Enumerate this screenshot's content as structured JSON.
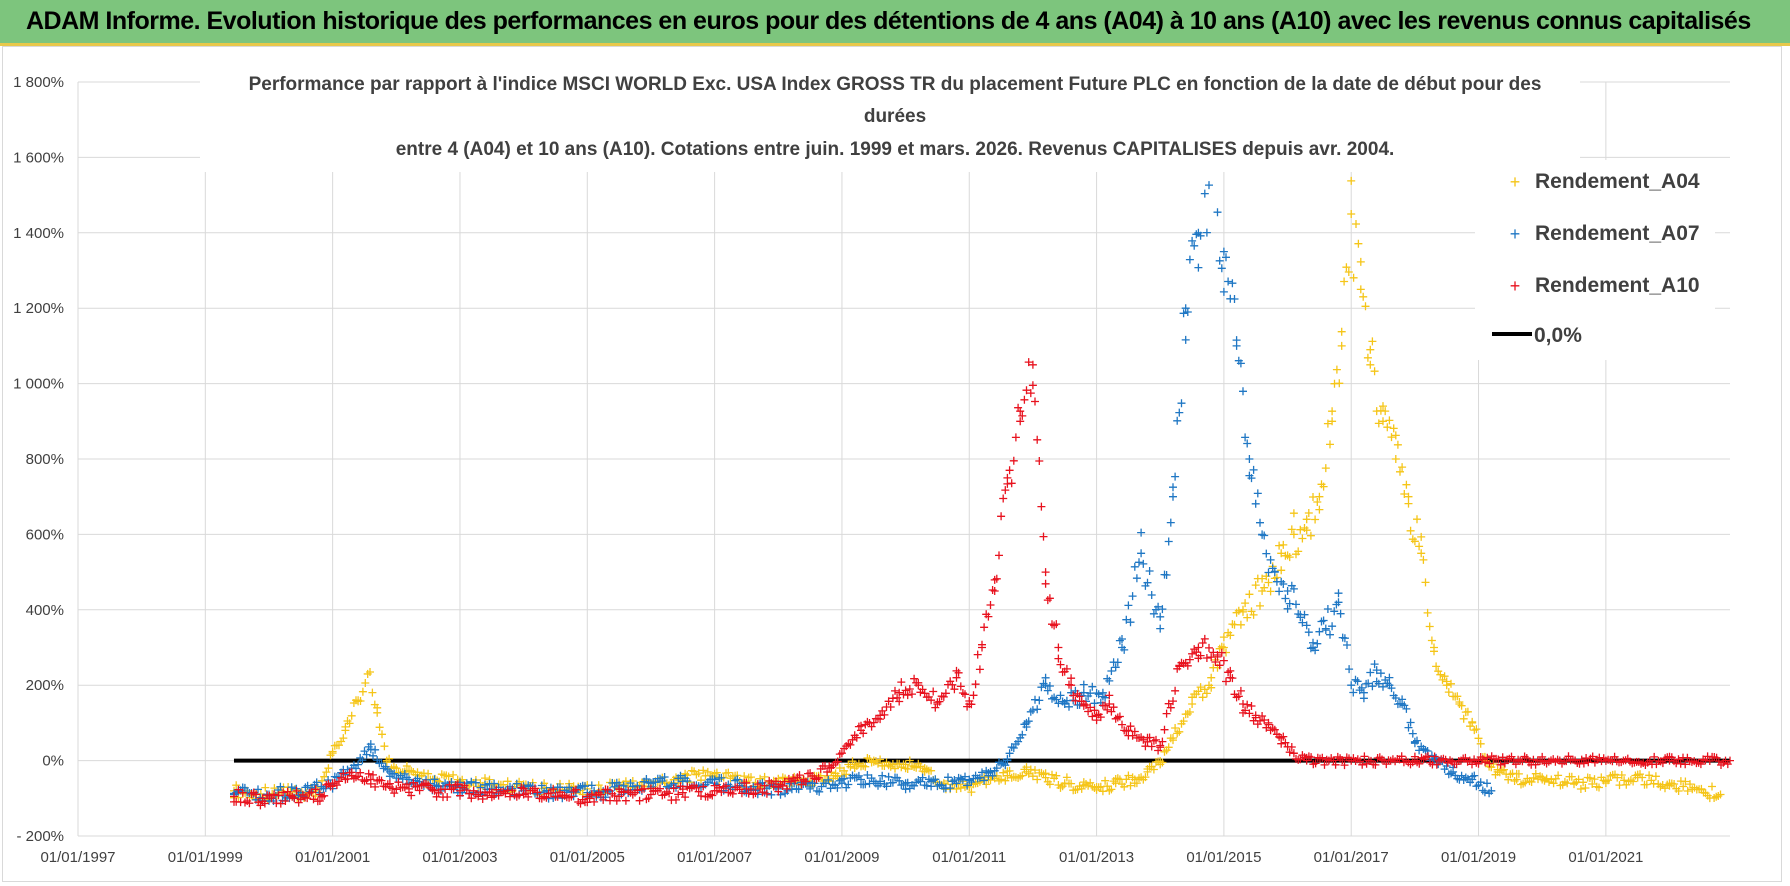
{
  "header": {
    "title": "ADAM Informe. Evolution historique des performances en euros pour des détentions de 4 ans (A04) à 10 ans (A10) avec les revenus connus capitalisés"
  },
  "colors": {
    "banner_bg": "#7dc57d",
    "banner_border": "#e8c84a",
    "a04": "#f5c518",
    "a07": "#1f77c4",
    "a10": "#e8121e",
    "zero": "#000000",
    "grid": "#d9d9d9"
  },
  "chart_data": {
    "type": "scatter",
    "title_lines": [
      "Performance par rapport à l'indice MSCI WORLD Exc. USA Index GROSS TR  du placement Future PLC en fonction de la date de début pour des",
      "durées",
      "entre 4 (A04) et 10 ans (A10).  Cotations entre juin. 1999 et mars. 2026.  Revenus CAPITALISES depuis avr. 2004."
    ],
    "x_tick_labels": [
      "01/01/1997",
      "01/01/1999",
      "01/01/2001",
      "01/01/2003",
      "01/01/2005",
      "01/01/2007",
      "01/01/2009",
      "01/01/2011",
      "01/01/2013",
      "01/01/2015",
      "01/01/2017",
      "01/01/2019",
      "01/01/2021"
    ],
    "x_range": [
      1997.0,
      2022.95
    ],
    "y_tick_labels": [
      "1 800%",
      "1 600%",
      "1 400%",
      "1 200%",
      "1 000%",
      "800%",
      "600%",
      "400%",
      "200%",
      "0%",
      "- 200%"
    ],
    "y_ticks": [
      1800,
      1600,
      1400,
      1200,
      1000,
      800,
      600,
      400,
      200,
      0,
      -200
    ],
    "ylim": [
      -200,
      1800
    ],
    "grid": true,
    "legend_position": "top-right",
    "series": [
      {
        "name": "Rendement_A04",
        "marker": "+",
        "x": [
          1999.45,
          1999.8,
          2000.3,
          2000.8,
          2001.0,
          2001.2,
          2001.4,
          2001.55,
          2001.7,
          2001.85,
          2002.0,
          2002.2,
          2002.5,
          2003.0,
          2003.5,
          2004.0,
          2004.5,
          2005.0,
          2005.5,
          2006.0,
          2006.5,
          2007.0,
          2007.5,
          2008.0,
          2008.5,
          2008.9,
          2009.2,
          2009.5,
          2009.8,
          2010.0,
          2010.3,
          2010.6,
          2011.0,
          2011.3,
          2011.6,
          2011.9,
          2012.2,
          2012.5,
          2012.8,
          2013.0,
          2013.3,
          2013.6,
          2013.8,
          2014.0,
          2014.2,
          2014.5,
          2014.8,
          2015.0,
          2015.3,
          2015.6,
          2015.9,
          2016.1,
          2016.3,
          2016.5,
          2016.7,
          2016.85,
          2017.0,
          2017.15,
          2017.3,
          2017.5,
          2017.7,
          2017.9,
          2018.1,
          2018.3,
          2018.5,
          2018.7,
          2018.9,
          2019.1,
          2019.3,
          2019.6,
          2020.0,
          2020.5,
          2021.0,
          2021.5,
          2022.0,
          2022.5,
          2022.8
        ],
        "y": [
          -80,
          -88,
          -88,
          -85,
          20,
          80,
          160,
          230,
          140,
          0,
          -20,
          -30,
          -50,
          -55,
          -65,
          -70,
          -80,
          -75,
          -65,
          -60,
          -45,
          -35,
          -55,
          -60,
          -55,
          -40,
          -10,
          0,
          -10,
          -10,
          -20,
          -60,
          -70,
          -50,
          -40,
          -30,
          -45,
          -60,
          -65,
          -70,
          -60,
          -50,
          -30,
          -10,
          60,
          150,
          220,
          300,
          400,
          450,
          550,
          600,
          640,
          700,
          900,
          1100,
          1450,
          1250,
          1050,
          900,
          800,
          700,
          550,
          300,
          200,
          150,
          100,
          0,
          -30,
          -50,
          -50,
          -60,
          -55,
          -45,
          -60,
          -75,
          -90
        ]
      },
      {
        "name": "Rendement_A07",
        "marker": "+",
        "x": [
          1999.45,
          2000.0,
          2000.5,
          2001.0,
          2001.3,
          2001.6,
          2001.9,
          2002.2,
          2002.6,
          2003.0,
          2003.5,
          2004.0,
          2004.5,
          2005.0,
          2005.5,
          2006.0,
          2006.5,
          2007.0,
          2007.5,
          2008.0,
          2008.5,
          2009.0,
          2009.3,
          2009.6,
          2010.0,
          2010.4,
          2010.8,
          2011.0,
          2011.3,
          2011.6,
          2011.9,
          2012.2,
          2012.5,
          2012.8,
          2013.1,
          2013.4,
          2013.7,
          2014.0,
          2014.2,
          2014.4,
          2014.6,
          2014.8,
          2015.0,
          2015.2,
          2015.4,
          2015.6,
          2015.8,
          2016.0,
          2016.2,
          2016.4,
          2016.6,
          2016.8,
          2017.0,
          2017.2,
          2017.4,
          2017.6,
          2017.8,
          2018.0,
          2018.3,
          2018.6,
          2018.9,
          2019.2
        ],
        "y": [
          -90,
          -90,
          -85,
          -60,
          -20,
          30,
          -30,
          -50,
          -65,
          -70,
          -75,
          -80,
          -85,
          -85,
          -75,
          -60,
          -55,
          -60,
          -70,
          -75,
          -70,
          -60,
          -50,
          -55,
          -60,
          -55,
          -60,
          -50,
          -40,
          0,
          100,
          200,
          150,
          180,
          170,
          300,
          550,
          350,
          700,
          1200,
          1400,
          1580,
          1350,
          1100,
          800,
          600,
          500,
          450,
          380,
          300,
          350,
          420,
          200,
          180,
          240,
          200,
          150,
          50,
          0,
          -30,
          -50,
          -80
        ]
      },
      {
        "name": "Rendement_A10",
        "marker": "+",
        "x": [
          1999.45,
          1999.9,
          2000.4,
          2000.8,
          2001.0,
          2001.3,
          2001.6,
          2001.9,
          2002.2,
          2002.6,
          2003.0,
          2003.5,
          2004.0,
          2004.5,
          2005.0,
          2005.5,
          2006.0,
          2006.5,
          2007.0,
          2007.5,
          2008.0,
          2008.4,
          2008.8,
          2009.0,
          2009.3,
          2009.6,
          2009.9,
          2010.2,
          2010.5,
          2010.8,
          2011.0,
          2011.2,
          2011.4,
          2011.6,
          2011.8,
          2012.0,
          2012.2,
          2012.4,
          2012.6,
          2012.8,
          2013.0,
          2013.2,
          2013.5,
          2013.8,
          2014.0,
          2014.3,
          2014.6,
          2014.9,
          2015.1,
          2015.3,
          2015.5,
          2015.7,
          2015.9,
          2016.1,
          2016.3,
          2017.0,
          2018.0,
          2019.0,
          2020.0,
          2021.0,
          2022.0,
          2022.95
        ],
        "y": [
          -95,
          -100,
          -100,
          -90,
          -60,
          -40,
          -50,
          -70,
          -75,
          -80,
          -80,
          -85,
          -90,
          -95,
          -95,
          -95,
          -90,
          -85,
          -80,
          -75,
          -70,
          -50,
          -20,
          20,
          80,
          120,
          180,
          200,
          150,
          220,
          150,
          300,
          450,
          750,
          900,
          1050,
          500,
          300,
          200,
          150,
          120,
          150,
          80,
          50,
          40,
          250,
          300,
          280,
          220,
          150,
          120,
          100,
          60,
          20,
          0,
          0,
          0,
          0,
          0,
          0,
          0,
          0
        ]
      },
      {
        "name": "0,0%",
        "x": [
          1999.45,
          2022.95
        ],
        "y": [
          0,
          0
        ]
      }
    ]
  }
}
